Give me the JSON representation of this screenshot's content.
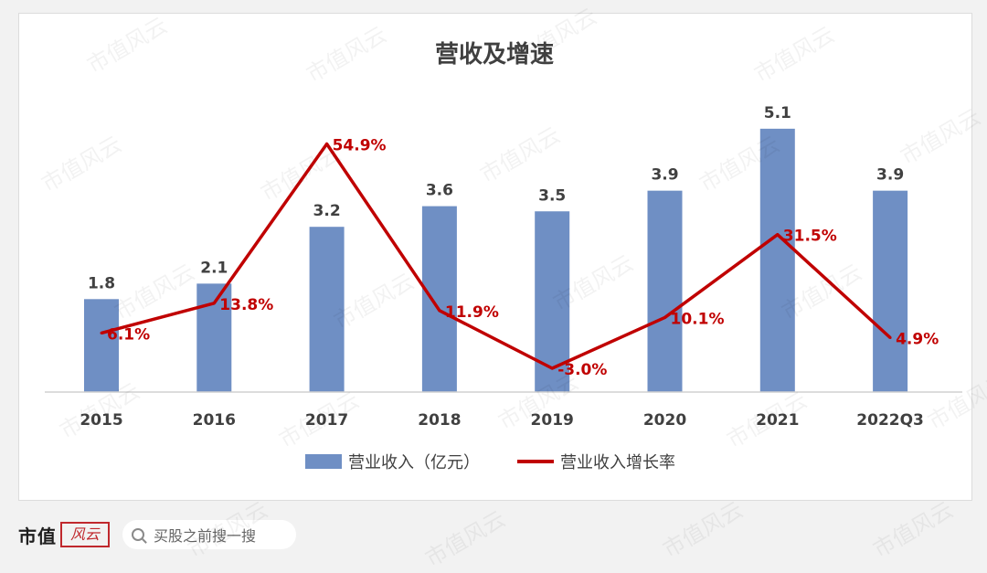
{
  "chart_data": {
    "type": "bar+line",
    "title": "营收及增速",
    "categories": [
      "2015",
      "2016",
      "2017",
      "2018",
      "2019",
      "2020",
      "2021",
      "2022Q3"
    ],
    "series": [
      {
        "name": "营业收入（亿元）",
        "type": "bar",
        "color": "#6f8fc4",
        "values": [
          1.8,
          2.1,
          3.2,
          3.6,
          3.5,
          3.9,
          5.1,
          3.9
        ],
        "labels": [
          "1.8",
          "2.1",
          "3.2",
          "3.6",
          "3.5",
          "3.9",
          "5.1",
          "3.9"
        ]
      },
      {
        "name": "营业收入增长率",
        "type": "line",
        "color": "#c00000",
        "values": [
          6.1,
          13.8,
          54.9,
          11.9,
          -3.0,
          10.1,
          31.5,
          4.9
        ],
        "labels": [
          "6.1%",
          "13.8%",
          "54.9%",
          "11.9%",
          "-3.0%",
          "10.1%",
          "31.5%",
          "4.9%"
        ]
      }
    ],
    "bar_ylim": [
      0,
      6.0
    ],
    "line_ylim": [
      -10,
      60
    ],
    "legend": "bottom-center",
    "grid": false
  },
  "footer": {
    "brand": "市值",
    "logo_text": "风云",
    "search_placeholder": "买股之前搜一搜"
  },
  "watermark": "市值风云"
}
